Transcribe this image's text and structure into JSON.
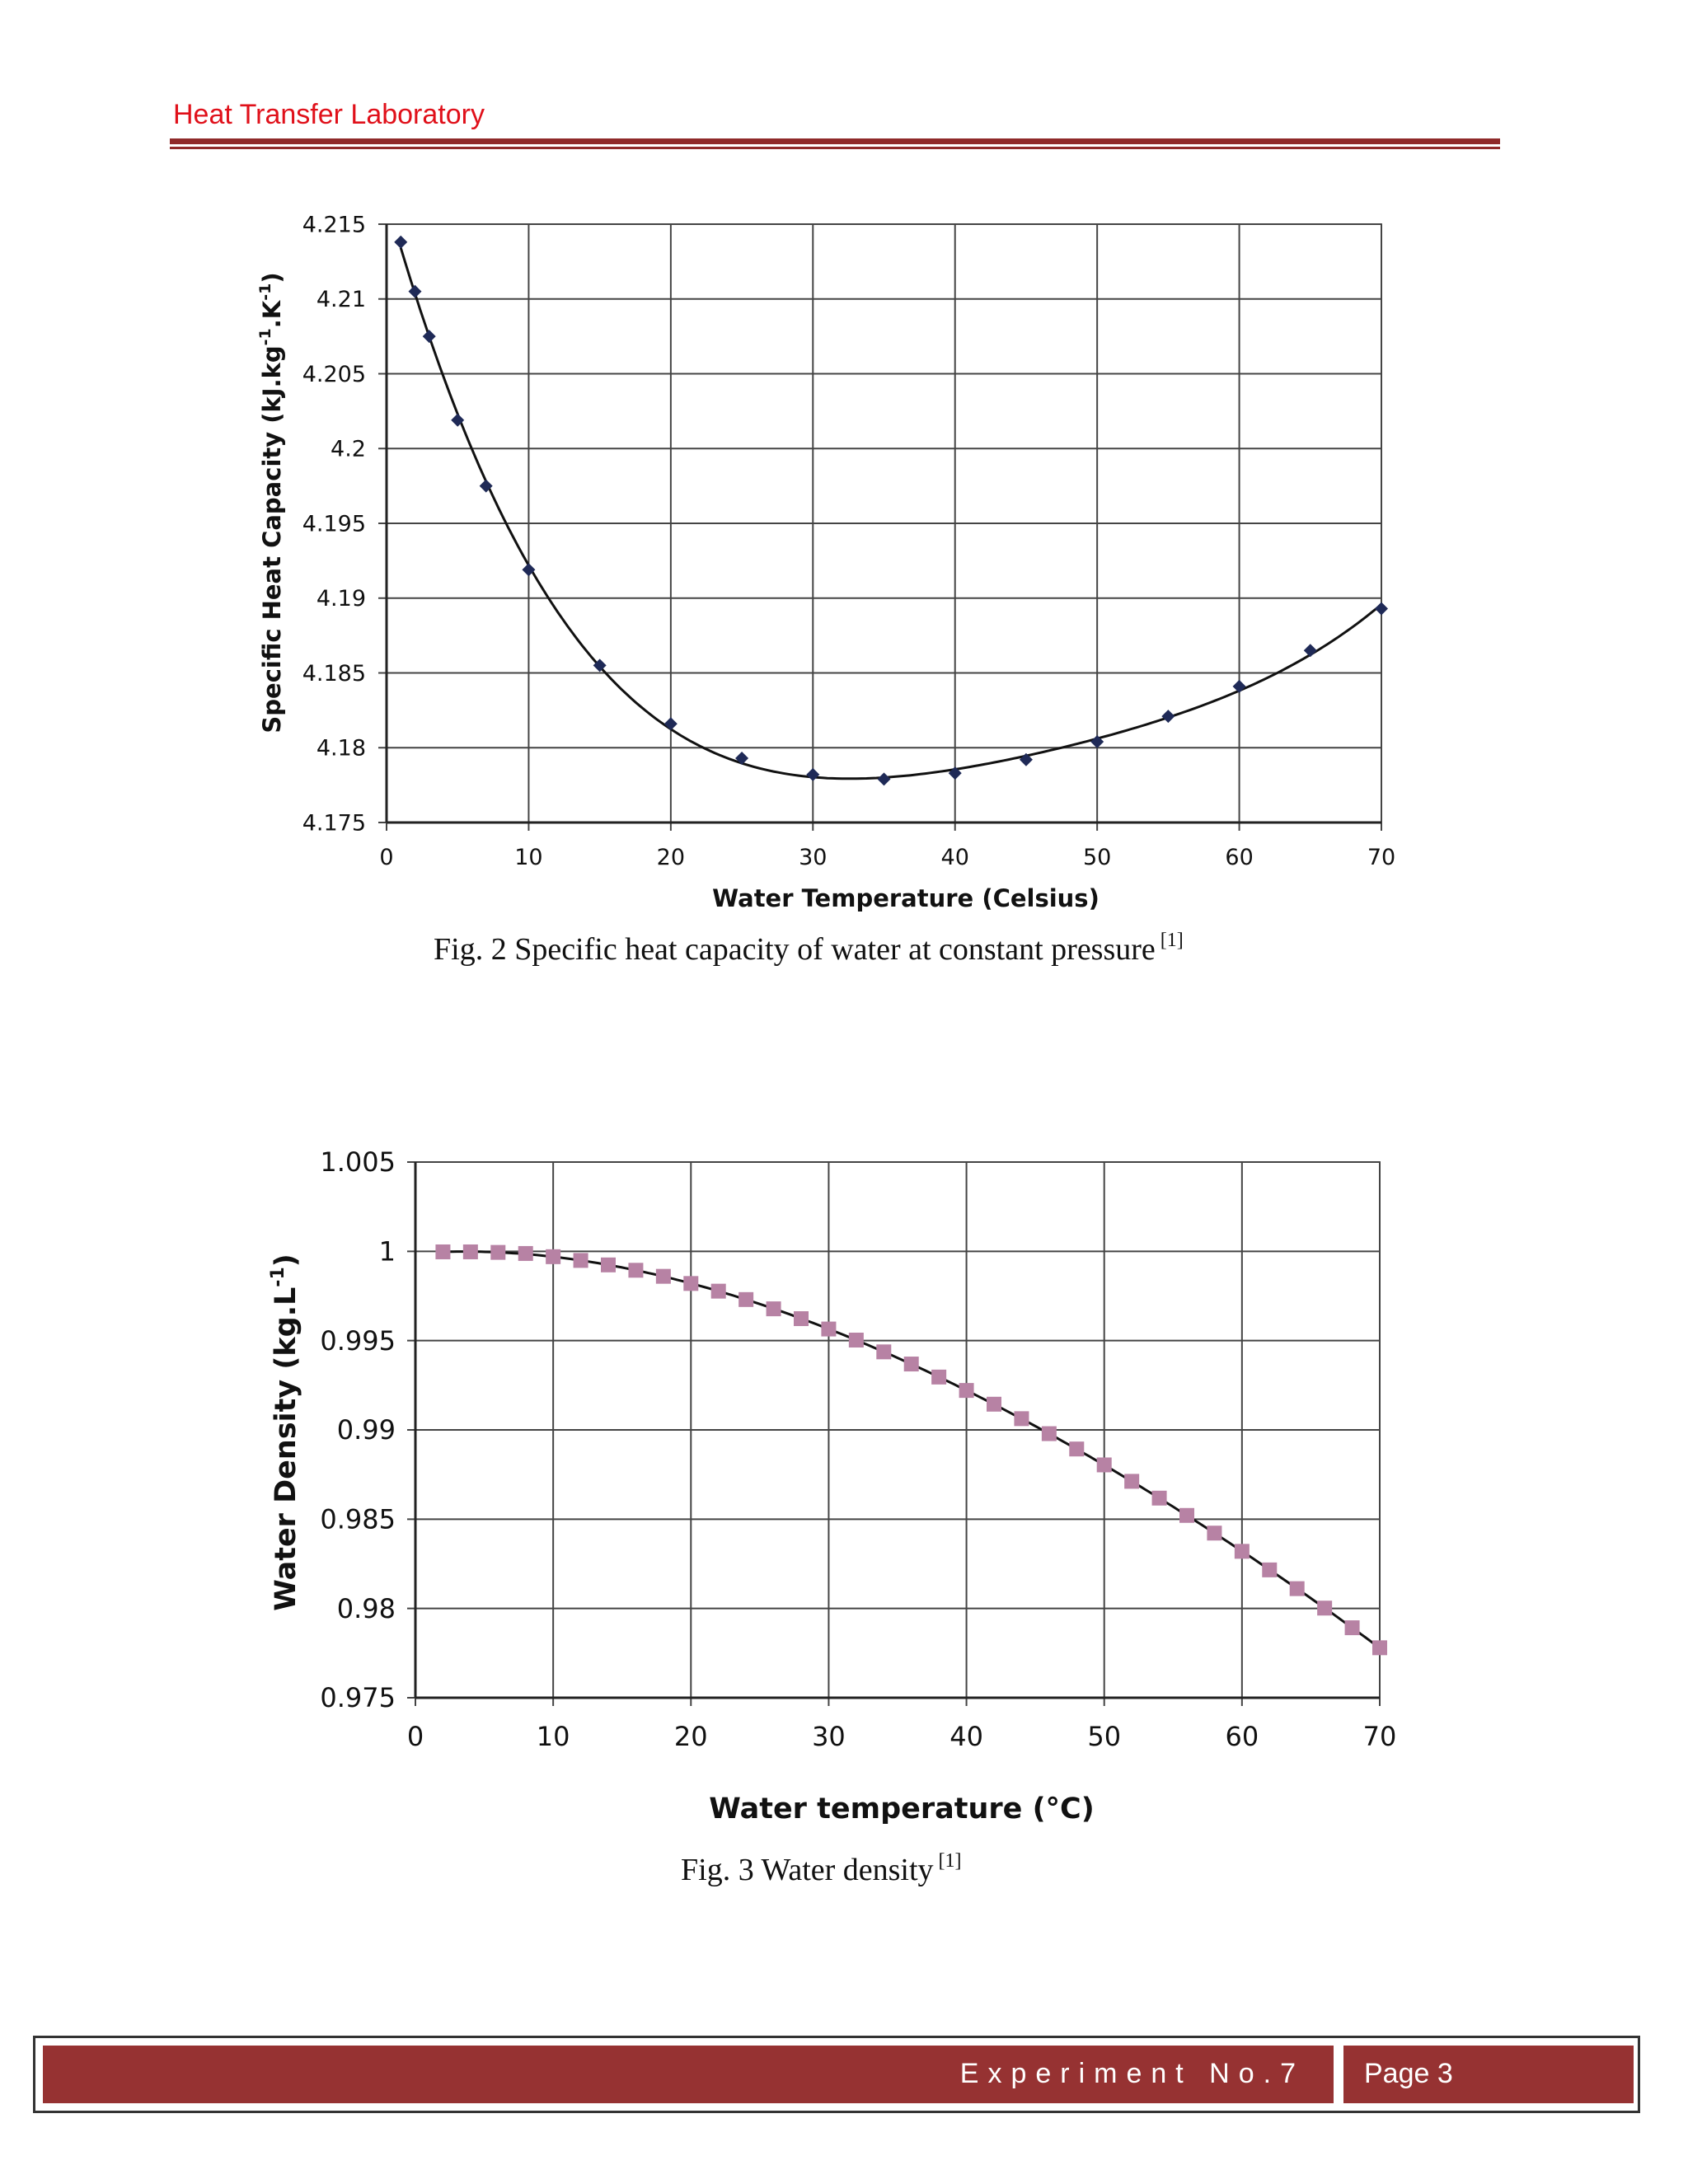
{
  "header": {
    "title": "Heat Transfer Laboratory"
  },
  "figures": [
    {
      "caption": "Fig. 2 Specific heat capacity of water at constant pressure",
      "ref": "[1]"
    },
    {
      "caption": "Fig. 3 Water density",
      "ref": "[1]"
    }
  ],
  "footer": {
    "experiment": "Experiment No.7",
    "page": "Page 3"
  },
  "colors": {
    "header_text": "#e0101a",
    "rule": "#8f2a2a",
    "footer_bar": "#963232",
    "chart1_marker": "#1f2a57",
    "chart2_marker": "#b782a4"
  },
  "chart_data": [
    {
      "type": "scatter",
      "title": "",
      "xlabel": "Water Temperature (Celsius)",
      "ylabel": "Specific Heat Capacity (kJ.kg",
      "ylabel_units": [
        "-1",
        ".K",
        "-1",
        ")"
      ],
      "xlim": [
        0,
        70
      ],
      "ylim": [
        4.175,
        4.215
      ],
      "xticks": [
        "0",
        "10",
        "20",
        "30",
        "40",
        "50",
        "60",
        "70"
      ],
      "yticks": [
        "4.175",
        "4.18",
        "4.185",
        "4.19",
        "4.195",
        "4.2",
        "4.205",
        "4.21",
        "4.215"
      ],
      "grid": true,
      "trendline": "polynomial",
      "series": [
        {
          "marker": "diamond",
          "x": [
            1,
            2,
            3,
            5,
            7,
            10,
            15,
            20,
            25,
            30,
            35,
            40,
            45,
            50,
            55,
            60,
            65,
            70
          ],
          "y": [
            4.2138,
            4.2105,
            4.2075,
            4.2019,
            4.1975,
            4.1919,
            4.1855,
            4.1816,
            4.1793,
            4.1782,
            4.1779,
            4.1783,
            4.1792,
            4.1804,
            4.1821,
            4.1841,
            4.1865,
            4.1893
          ]
        }
      ]
    },
    {
      "type": "scatter",
      "title": "",
      "xlabel": "Water temperature (°C)",
      "ylabel": "Water Density (kg.L",
      "ylabel_units": [
        "-1",
        ")"
      ],
      "xlim": [
        0,
        70
      ],
      "ylim": [
        0.975,
        1.005
      ],
      "xticks": [
        "0",
        "10",
        "20",
        "30",
        "40",
        "50",
        "60",
        "70"
      ],
      "yticks": [
        "0.975",
        "0.98",
        "0.985",
        "0.99",
        "0.995",
        "1",
        "1.005"
      ],
      "grid": true,
      "trendline": "polynomial",
      "series": [
        {
          "marker": "square",
          "x": [
            2,
            4,
            6,
            8,
            10,
            12,
            14,
            16,
            18,
            20,
            22,
            24,
            26,
            28,
            30,
            32,
            34,
            36,
            38,
            40,
            42,
            44,
            46,
            48,
            50,
            52,
            54,
            56,
            58,
            60,
            62,
            64,
            66,
            68,
            70
          ],
          "y": [
            0.99997,
            0.99997,
            0.99994,
            0.99988,
            0.9997,
            0.99949,
            0.99924,
            0.99894,
            0.9986,
            0.9982,
            0.99777,
            0.9973,
            0.99678,
            0.99623,
            0.99565,
            0.99503,
            0.99437,
            0.99369,
            0.99296,
            0.99221,
            0.99144,
            0.99063,
            0.98979,
            0.98893,
            0.98804,
            0.98712,
            0.98618,
            0.98521,
            0.98422,
            0.9832,
            0.98216,
            0.98111,
            0.98002,
            0.97892,
            0.9778
          ]
        }
      ]
    }
  ]
}
